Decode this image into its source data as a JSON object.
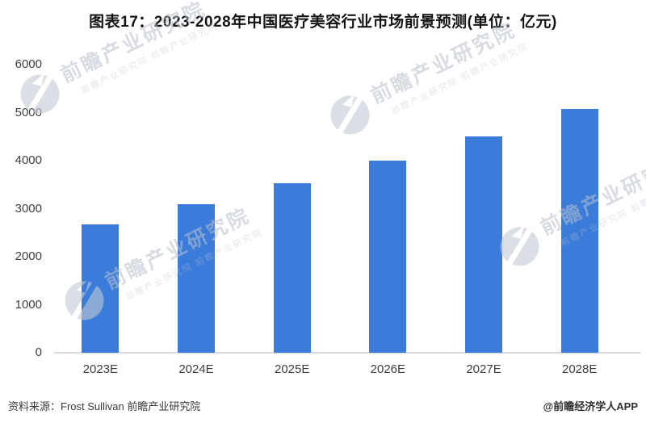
{
  "title": "图表17：2023-2028年中国医疗美容行业市场前景预测(单位：亿元)",
  "chart_data": {
    "type": "bar",
    "categories": [
      "2023E",
      "2024E",
      "2025E",
      "2026E",
      "2027E",
      "2028E"
    ],
    "values": [
      2666,
      3099,
      3529,
      4000,
      4509,
      5070
    ],
    "title": "图表17：2023-2028年中国医疗美容行业市场前景预测(单位：亿元)",
    "xlabel": "",
    "ylabel": "",
    "unit": "亿元",
    "ylim": [
      0,
      6000
    ],
    "yticks": [
      0,
      1000,
      2000,
      3000,
      4000,
      5000,
      6000
    ],
    "grid": false,
    "legend_position": "none",
    "bar_color": "#3b7cdb"
  },
  "footer": {
    "source": "资料来源：Frost Sullivan 前瞻产业研究院",
    "credit": "@前瞻经济学人APP"
  },
  "watermark": {
    "text": "前瞻产业研究院",
    "subtext": "前瞻产业研究院 前瞻产业研究院",
    "logo": "qianzhan-logo",
    "color": "#c3cad4"
  }
}
